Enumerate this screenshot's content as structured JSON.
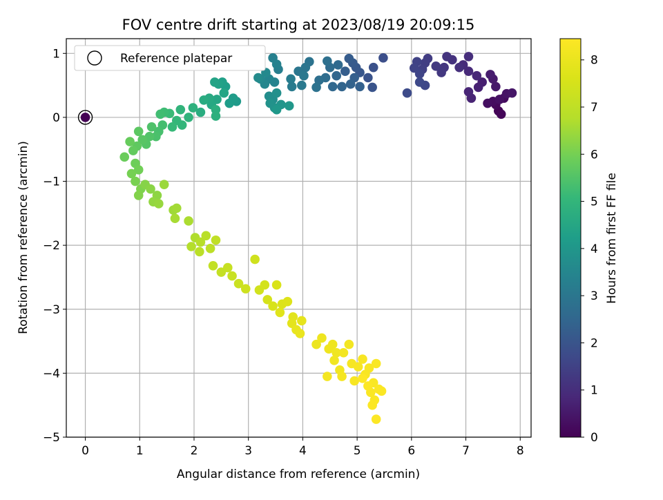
{
  "chart_data": {
    "type": "scatter",
    "title": "FOV centre drift starting at 2023/08/19 20:09:15",
    "xlabel": "Angular distance from reference (arcmin)",
    "ylabel": "Rotation from reference (arcmin)",
    "xlim": [
      -0.35,
      8.2
    ],
    "ylim": [
      -5.0,
      1.23
    ],
    "xticks": [
      0,
      1,
      2,
      3,
      4,
      5,
      6,
      7,
      8
    ],
    "yticks": [
      1,
      0,
      -1,
      -2,
      -3,
      -4,
      -5
    ],
    "xtick_labels": [
      "0",
      "1",
      "2",
      "3",
      "4",
      "5",
      "6",
      "7",
      "8"
    ],
    "ytick_labels": [
      "1",
      "0",
      "−1",
      "−2",
      "−3",
      "−4",
      "−5"
    ],
    "grid": true,
    "colormap": "viridis",
    "colorbar": {
      "label": "Hours from first FF file",
      "range": [
        0,
        8.45
      ],
      "ticks": [
        0,
        1,
        2,
        3,
        4,
        5,
        6,
        7,
        8
      ],
      "tick_labels": [
        "0",
        "1",
        "2",
        "3",
        "4",
        "5",
        "6",
        "7",
        "8"
      ]
    },
    "legend": {
      "position": "top-left",
      "entries": [
        "Reference platepar"
      ]
    },
    "reference_point": {
      "x": 0,
      "y": 0
    },
    "points": [
      {
        "x": 0.0,
        "y": 0.0,
        "t": 0.0
      },
      {
        "x": 7.6,
        "y": 0.1,
        "t": 0.05
      },
      {
        "x": 7.65,
        "y": 0.05,
        "t": 0.1
      },
      {
        "x": 7.55,
        "y": 0.2,
        "t": 0.15
      },
      {
        "x": 7.7,
        "y": 0.3,
        "t": 0.2
      },
      {
        "x": 7.5,
        "y": 0.25,
        "t": 0.25
      },
      {
        "x": 7.4,
        "y": 0.22,
        "t": 0.3
      },
      {
        "x": 7.62,
        "y": 0.28,
        "t": 0.35
      },
      {
        "x": 7.75,
        "y": 0.37,
        "t": 0.4
      },
      {
        "x": 7.85,
        "y": 0.38,
        "t": 0.45
      },
      {
        "x": 7.55,
        "y": 0.48,
        "t": 0.5
      },
      {
        "x": 7.5,
        "y": 0.6,
        "t": 0.55
      },
      {
        "x": 7.45,
        "y": 0.67,
        "t": 0.6
      },
      {
        "x": 7.3,
        "y": 0.55,
        "t": 0.65
      },
      {
        "x": 7.23,
        "y": 0.47,
        "t": 0.7
      },
      {
        "x": 7.1,
        "y": 0.3,
        "t": 0.75
      },
      {
        "x": 7.05,
        "y": 0.4,
        "t": 0.8
      },
      {
        "x": 7.2,
        "y": 0.65,
        "t": 0.85
      },
      {
        "x": 7.05,
        "y": 0.72,
        "t": 0.9
      },
      {
        "x": 6.95,
        "y": 0.82,
        "t": 0.95
      },
      {
        "x": 7.05,
        "y": 0.95,
        "t": 1.0
      },
      {
        "x": 6.88,
        "y": 0.78,
        "t": 1.05
      },
      {
        "x": 6.75,
        "y": 0.9,
        "t": 1.1
      },
      {
        "x": 6.65,
        "y": 0.95,
        "t": 1.15
      },
      {
        "x": 6.6,
        "y": 0.78,
        "t": 1.2
      },
      {
        "x": 6.55,
        "y": 0.7,
        "t": 1.25
      },
      {
        "x": 6.45,
        "y": 0.8,
        "t": 1.3
      },
      {
        "x": 6.3,
        "y": 0.92,
        "t": 1.35
      },
      {
        "x": 6.25,
        "y": 0.85,
        "t": 1.4
      },
      {
        "x": 6.2,
        "y": 0.75,
        "t": 1.45
      },
      {
        "x": 6.1,
        "y": 0.87,
        "t": 1.5
      },
      {
        "x": 6.05,
        "y": 0.77,
        "t": 1.55
      },
      {
        "x": 6.15,
        "y": 0.68,
        "t": 1.6
      },
      {
        "x": 6.25,
        "y": 0.5,
        "t": 1.65
      },
      {
        "x": 6.15,
        "y": 0.55,
        "t": 1.7
      },
      {
        "x": 5.92,
        "y": 0.38,
        "t": 1.75
      },
      {
        "x": 5.48,
        "y": 0.93,
        "t": 1.85
      },
      {
        "x": 5.3,
        "y": 0.78,
        "t": 1.9
      },
      {
        "x": 5.2,
        "y": 0.62,
        "t": 1.95
      },
      {
        "x": 5.28,
        "y": 0.47,
        "t": 2.0
      },
      {
        "x": 5.05,
        "y": 0.7,
        "t": 2.05
      },
      {
        "x": 4.98,
        "y": 0.78,
        "t": 2.1
      },
      {
        "x": 4.92,
        "y": 0.85,
        "t": 2.15
      },
      {
        "x": 4.85,
        "y": 0.92,
        "t": 2.2
      },
      {
        "x": 4.78,
        "y": 0.72,
        "t": 2.25
      },
      {
        "x": 4.95,
        "y": 0.62,
        "t": 2.3
      },
      {
        "x": 5.05,
        "y": 0.48,
        "t": 2.35
      },
      {
        "x": 4.88,
        "y": 0.52,
        "t": 2.4
      },
      {
        "x": 4.72,
        "y": 0.48,
        "t": 2.45
      },
      {
        "x": 4.62,
        "y": 0.65,
        "t": 2.5
      },
      {
        "x": 4.55,
        "y": 0.48,
        "t": 2.55
      },
      {
        "x": 4.65,
        "y": 0.82,
        "t": 2.6
      },
      {
        "x": 4.5,
        "y": 0.78,
        "t": 2.65
      },
      {
        "x": 4.42,
        "y": 0.62,
        "t": 2.7
      },
      {
        "x": 4.3,
        "y": 0.58,
        "t": 2.75
      },
      {
        "x": 4.45,
        "y": 0.88,
        "t": 2.8
      },
      {
        "x": 4.25,
        "y": 0.47,
        "t": 2.85
      },
      {
        "x": 4.12,
        "y": 0.87,
        "t": 2.9
      },
      {
        "x": 4.05,
        "y": 0.78,
        "t": 2.95
      },
      {
        "x": 3.92,
        "y": 0.72,
        "t": 3.0
      },
      {
        "x": 4.02,
        "y": 0.65,
        "t": 3.05
      },
      {
        "x": 3.98,
        "y": 0.5,
        "t": 3.1
      },
      {
        "x": 3.8,
        "y": 0.48,
        "t": 3.15
      },
      {
        "x": 3.78,
        "y": 0.6,
        "t": 3.2
      },
      {
        "x": 3.55,
        "y": 0.75,
        "t": 3.25
      },
      {
        "x": 3.45,
        "y": 0.93,
        "t": 3.3
      },
      {
        "x": 3.52,
        "y": 0.83,
        "t": 3.35
      },
      {
        "x": 3.48,
        "y": 0.55,
        "t": 3.4
      },
      {
        "x": 3.38,
        "y": 0.6,
        "t": 3.45
      },
      {
        "x": 3.3,
        "y": 0.52,
        "t": 3.5
      },
      {
        "x": 3.22,
        "y": 0.6,
        "t": 3.55
      },
      {
        "x": 3.32,
        "y": 0.7,
        "t": 3.6
      },
      {
        "x": 3.18,
        "y": 0.62,
        "t": 3.65
      },
      {
        "x": 3.38,
        "y": 0.33,
        "t": 3.7
      },
      {
        "x": 3.45,
        "y": 0.28,
        "t": 3.75
      },
      {
        "x": 3.52,
        "y": 0.38,
        "t": 3.8
      },
      {
        "x": 3.4,
        "y": 0.22,
        "t": 3.85
      },
      {
        "x": 3.48,
        "y": 0.15,
        "t": 3.9
      },
      {
        "x": 3.6,
        "y": 0.2,
        "t": 3.95
      },
      {
        "x": 3.75,
        "y": 0.18,
        "t": 4.0
      },
      {
        "x": 3.52,
        "y": 0.12,
        "t": 4.05
      },
      {
        "x": 2.78,
        "y": 0.25,
        "t": 4.1
      },
      {
        "x": 2.72,
        "y": 0.3,
        "t": 4.15
      },
      {
        "x": 2.65,
        "y": 0.22,
        "t": 4.2
      },
      {
        "x": 2.58,
        "y": 0.48,
        "t": 4.25
      },
      {
        "x": 2.52,
        "y": 0.55,
        "t": 4.3
      },
      {
        "x": 2.45,
        "y": 0.52,
        "t": 4.35
      },
      {
        "x": 2.38,
        "y": 0.55,
        "t": 4.4
      },
      {
        "x": 2.55,
        "y": 0.38,
        "t": 4.45
      },
      {
        "x": 2.42,
        "y": 0.28,
        "t": 4.5
      },
      {
        "x": 2.32,
        "y": 0.2,
        "t": 4.55
      },
      {
        "x": 2.28,
        "y": 0.3,
        "t": 4.6
      },
      {
        "x": 2.18,
        "y": 0.27,
        "t": 4.65
      },
      {
        "x": 2.12,
        "y": 0.08,
        "t": 4.7
      },
      {
        "x": 2.4,
        "y": 0.12,
        "t": 4.75
      },
      {
        "x": 2.4,
        "y": 0.02,
        "t": 4.8
      },
      {
        "x": 1.98,
        "y": 0.15,
        "t": 4.85
      },
      {
        "x": 1.9,
        "y": 0.0,
        "t": 4.9
      },
      {
        "x": 1.75,
        "y": 0.12,
        "t": 4.95
      },
      {
        "x": 1.78,
        "y": -0.12,
        "t": 5.0
      },
      {
        "x": 1.68,
        "y": -0.05,
        "t": 5.05
      },
      {
        "x": 1.6,
        "y": -0.15,
        "t": 5.1
      },
      {
        "x": 1.55,
        "y": 0.06,
        "t": 5.15
      },
      {
        "x": 1.45,
        "y": 0.08,
        "t": 5.2
      },
      {
        "x": 1.38,
        "y": 0.05,
        "t": 5.25
      },
      {
        "x": 1.42,
        "y": -0.12,
        "t": 5.3
      },
      {
        "x": 1.35,
        "y": -0.22,
        "t": 5.35
      },
      {
        "x": 1.3,
        "y": -0.3,
        "t": 5.4
      },
      {
        "x": 1.22,
        "y": -0.15,
        "t": 5.45
      },
      {
        "x": 1.18,
        "y": -0.3,
        "t": 5.5
      },
      {
        "x": 1.12,
        "y": -0.42,
        "t": 5.55
      },
      {
        "x": 1.05,
        "y": -0.35,
        "t": 5.6
      },
      {
        "x": 0.98,
        "y": -0.22,
        "t": 5.65
      },
      {
        "x": 0.95,
        "y": -0.45,
        "t": 5.7
      },
      {
        "x": 0.88,
        "y": -0.52,
        "t": 5.75
      },
      {
        "x": 0.82,
        "y": -0.38,
        "t": 5.8
      },
      {
        "x": 0.72,
        "y": -0.62,
        "t": 5.85
      },
      {
        "x": 0.92,
        "y": -0.72,
        "t": 5.9
      },
      {
        "x": 0.98,
        "y": -0.82,
        "t": 5.95
      },
      {
        "x": 0.85,
        "y": -0.88,
        "t": 6.0
      },
      {
        "x": 0.92,
        "y": -1.0,
        "t": 6.05
      },
      {
        "x": 1.02,
        "y": -1.12,
        "t": 6.1
      },
      {
        "x": 0.98,
        "y": -1.22,
        "t": 6.15
      },
      {
        "x": 1.1,
        "y": -1.05,
        "t": 6.2
      },
      {
        "x": 1.2,
        "y": -1.12,
        "t": 6.25
      },
      {
        "x": 1.32,
        "y": -1.22,
        "t": 6.3
      },
      {
        "x": 1.25,
        "y": -1.32,
        "t": 6.35
      },
      {
        "x": 1.35,
        "y": -1.35,
        "t": 6.4
      },
      {
        "x": 1.45,
        "y": -1.05,
        "t": 6.45
      },
      {
        "x": 1.62,
        "y": -1.45,
        "t": 6.5
      },
      {
        "x": 1.68,
        "y": -1.42,
        "t": 6.55
      },
      {
        "x": 1.65,
        "y": -1.58,
        "t": 6.6
      },
      {
        "x": 1.9,
        "y": -1.62,
        "t": 6.65
      },
      {
        "x": 2.02,
        "y": -1.88,
        "t": 6.7
      },
      {
        "x": 1.95,
        "y": -2.02,
        "t": 6.75
      },
      {
        "x": 2.12,
        "y": -1.95,
        "t": 6.8
      },
      {
        "x": 2.22,
        "y": -1.85,
        "t": 6.85
      },
      {
        "x": 2.1,
        "y": -2.1,
        "t": 6.9
      },
      {
        "x": 2.3,
        "y": -2.05,
        "t": 6.95
      },
      {
        "x": 2.4,
        "y": -1.92,
        "t": 7.0
      },
      {
        "x": 2.35,
        "y": -2.32,
        "t": 7.05
      },
      {
        "x": 2.5,
        "y": -2.42,
        "t": 7.1
      },
      {
        "x": 2.62,
        "y": -2.35,
        "t": 7.15
      },
      {
        "x": 2.7,
        "y": -2.48,
        "t": 7.2
      },
      {
        "x": 2.82,
        "y": -2.6,
        "t": 7.25
      },
      {
        "x": 2.95,
        "y": -2.68,
        "t": 7.3
      },
      {
        "x": 3.12,
        "y": -2.22,
        "t": 7.35
      },
      {
        "x": 3.2,
        "y": -2.7,
        "t": 7.4
      },
      {
        "x": 3.3,
        "y": -2.62,
        "t": 7.45
      },
      {
        "x": 3.35,
        "y": -2.85,
        "t": 7.5
      },
      {
        "x": 3.45,
        "y": -2.95,
        "t": 7.55
      },
      {
        "x": 3.52,
        "y": -2.62,
        "t": 7.6
      },
      {
        "x": 3.62,
        "y": -2.92,
        "t": 7.65
      },
      {
        "x": 3.72,
        "y": -2.88,
        "t": 7.7
      },
      {
        "x": 3.58,
        "y": -3.05,
        "t": 7.75
      },
      {
        "x": 3.82,
        "y": -3.12,
        "t": 7.8
      },
      {
        "x": 3.8,
        "y": -3.22,
        "t": 7.85
      },
      {
        "x": 3.98,
        "y": -3.18,
        "t": 7.9
      },
      {
        "x": 3.88,
        "y": -3.32,
        "t": 7.95
      },
      {
        "x": 3.95,
        "y": -3.38,
        "t": 8.0
      },
      {
        "x": 4.25,
        "y": -3.55,
        "t": 8.05
      },
      {
        "x": 4.35,
        "y": -3.45,
        "t": 8.08
      },
      {
        "x": 4.48,
        "y": -3.62,
        "t": 8.1
      },
      {
        "x": 4.55,
        "y": -3.55,
        "t": 8.12
      },
      {
        "x": 4.62,
        "y": -3.68,
        "t": 8.14
      },
      {
        "x": 4.58,
        "y": -3.8,
        "t": 8.16
      },
      {
        "x": 4.68,
        "y": -3.95,
        "t": 8.18
      },
      {
        "x": 4.75,
        "y": -3.68,
        "t": 8.2
      },
      {
        "x": 4.85,
        "y": -3.55,
        "t": 8.22
      },
      {
        "x": 4.45,
        "y": -4.05,
        "t": 8.24
      },
      {
        "x": 4.72,
        "y": -4.05,
        "t": 8.26
      },
      {
        "x": 4.9,
        "y": -3.85,
        "t": 8.28
      },
      {
        "x": 4.95,
        "y": -4.12,
        "t": 8.3
      },
      {
        "x": 5.02,
        "y": -3.9,
        "t": 8.31
      },
      {
        "x": 5.1,
        "y": -3.78,
        "t": 8.32
      },
      {
        "x": 5.15,
        "y": -4.02,
        "t": 8.33
      },
      {
        "x": 5.22,
        "y": -3.92,
        "t": 8.34
      },
      {
        "x": 5.3,
        "y": -4.15,
        "t": 8.35
      },
      {
        "x": 5.35,
        "y": -3.85,
        "t": 8.36
      },
      {
        "x": 5.25,
        "y": -4.3,
        "t": 8.37
      },
      {
        "x": 5.32,
        "y": -4.42,
        "t": 8.38
      },
      {
        "x": 5.28,
        "y": -4.5,
        "t": 8.39
      },
      {
        "x": 5.4,
        "y": -4.25,
        "t": 8.4
      },
      {
        "x": 5.45,
        "y": -4.28,
        "t": 8.41
      },
      {
        "x": 5.35,
        "y": -4.72,
        "t": 8.42
      },
      {
        "x": 5.2,
        "y": -4.2,
        "t": 8.43
      },
      {
        "x": 5.1,
        "y": -4.08,
        "t": 8.44
      }
    ]
  }
}
